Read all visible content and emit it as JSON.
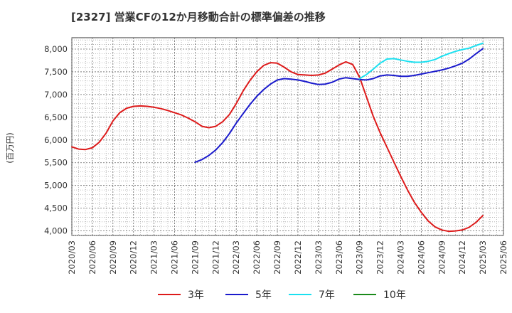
{
  "chart_data": {
    "type": "line",
    "title": "[2327]  営業CFの12か月移動合計の標準偏差の推移",
    "ylabel": "(百万円)",
    "xlabel": "",
    "ylim": [
      3900,
      8250
    ],
    "yticks": [
      4000,
      4500,
      5000,
      5500,
      6000,
      6500,
      7000,
      7500,
      8000
    ],
    "ytick_labels": [
      "4,000",
      "4,500",
      "5,000",
      "5,500",
      "6,000",
      "6,500",
      "7,000",
      "7,500",
      "8,000"
    ],
    "x_start": "2020/03",
    "x_end": "2025/06",
    "xtick_labels": [
      "2020/03",
      "2020/06",
      "2020/09",
      "2020/12",
      "2021/03",
      "2021/06",
      "2021/09",
      "2021/12",
      "2022/03",
      "2022/06",
      "2022/09",
      "2022/12",
      "2023/03",
      "2023/06",
      "2023/09",
      "2023/12",
      "2024/03",
      "2024/06",
      "2024/09",
      "2024/12",
      "2025/03",
      "2025/06"
    ],
    "grid": true,
    "legend_position": "bottom",
    "series": [
      {
        "name": "3年",
        "color": "#dd1a1a",
        "x": [
          "2020/03",
          "2020/04",
          "2020/05",
          "2020/06",
          "2020/07",
          "2020/08",
          "2020/09",
          "2020/10",
          "2020/11",
          "2020/12",
          "2021/01",
          "2021/02",
          "2021/03",
          "2021/04",
          "2021/05",
          "2021/06",
          "2021/07",
          "2021/08",
          "2021/09",
          "2021/10",
          "2021/11",
          "2021/12",
          "2022/01",
          "2022/02",
          "2022/03",
          "2022/04",
          "2022/05",
          "2022/06",
          "2022/07",
          "2022/08",
          "2022/09",
          "2022/10",
          "2022/11",
          "2022/12",
          "2023/01",
          "2023/02",
          "2023/03",
          "2023/04",
          "2023/05",
          "2023/06",
          "2023/07",
          "2023/08",
          "2023/09",
          "2023/10",
          "2023/11",
          "2023/12",
          "2024/01",
          "2024/02",
          "2024/03",
          "2024/04",
          "2024/05",
          "2024/06",
          "2024/07",
          "2024/08",
          "2024/09",
          "2024/10",
          "2024/11",
          "2024/12",
          "2025/01",
          "2025/02",
          "2025/03"
        ],
        "values": [
          5850,
          5800,
          5790,
          5830,
          5950,
          6150,
          6420,
          6600,
          6700,
          6740,
          6750,
          6740,
          6720,
          6690,
          6650,
          6600,
          6550,
          6480,
          6400,
          6300,
          6270,
          6300,
          6400,
          6560,
          6800,
          7080,
          7310,
          7500,
          7640,
          7700,
          7690,
          7600,
          7500,
          7440,
          7430,
          7420,
          7430,
          7470,
          7560,
          7650,
          7720,
          7660,
          7380,
          6950,
          6520,
          6160,
          5840,
          5520,
          5200,
          4900,
          4630,
          4410,
          4220,
          4090,
          4020,
          3990,
          4000,
          4020,
          4080,
          4190,
          4340
        ]
      },
      {
        "name": "5年",
        "color": "#1a1acc",
        "x": [
          "2021/09",
          "2021/10",
          "2021/11",
          "2021/12",
          "2022/01",
          "2022/02",
          "2022/03",
          "2022/04",
          "2022/05",
          "2022/06",
          "2022/07",
          "2022/08",
          "2022/09",
          "2022/10",
          "2022/11",
          "2022/12",
          "2023/01",
          "2023/02",
          "2023/03",
          "2023/04",
          "2023/05",
          "2023/06",
          "2023/07",
          "2023/08",
          "2023/09",
          "2023/10",
          "2023/11",
          "2023/12",
          "2024/01",
          "2024/02",
          "2024/03",
          "2024/04",
          "2024/05",
          "2024/06",
          "2024/07",
          "2024/08",
          "2024/09",
          "2024/10",
          "2024/11",
          "2024/12",
          "2025/01",
          "2025/02",
          "2025/03"
        ],
        "values": [
          5510,
          5570,
          5660,
          5780,
          5940,
          6140,
          6370,
          6580,
          6780,
          6960,
          7110,
          7230,
          7320,
          7350,
          7340,
          7320,
          7290,
          7250,
          7220,
          7230,
          7270,
          7340,
          7370,
          7350,
          7330,
          7320,
          7350,
          7410,
          7430,
          7420,
          7400,
          7400,
          7420,
          7450,
          7480,
          7510,
          7540,
          7580,
          7630,
          7690,
          7780,
          7900,
          8010
        ]
      },
      {
        "name": "7年",
        "color": "#1ae0f0",
        "x": [
          "2023/09",
          "2023/10",
          "2023/11",
          "2023/12",
          "2024/01",
          "2024/02",
          "2024/03",
          "2024/04",
          "2024/05",
          "2024/06",
          "2024/07",
          "2024/08",
          "2024/09",
          "2024/10",
          "2024/11",
          "2024/12",
          "2025/01",
          "2025/02",
          "2025/03"
        ],
        "values": [
          7350,
          7440,
          7560,
          7690,
          7780,
          7790,
          7760,
          7730,
          7710,
          7710,
          7730,
          7770,
          7840,
          7900,
          7950,
          7990,
          8020,
          8080,
          8130
        ]
      },
      {
        "name": "10年",
        "color": "#1a8a1a",
        "x": [],
        "values": []
      }
    ]
  }
}
